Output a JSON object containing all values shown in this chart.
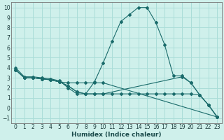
{
  "xlabel": "Humidex (Indice chaleur)",
  "bg_color": "#cff0eb",
  "grid_color": "#aaddd8",
  "line_color": "#1a6b6b",
  "xlim": [
    -0.5,
    23.5
  ],
  "ylim": [
    -1.5,
    10.5
  ],
  "xticks": [
    0,
    1,
    2,
    3,
    4,
    5,
    6,
    7,
    8,
    9,
    10,
    11,
    12,
    13,
    14,
    15,
    16,
    17,
    18,
    19,
    20,
    21,
    22,
    23
  ],
  "yticks": [
    -1,
    0,
    1,
    2,
    3,
    4,
    5,
    6,
    7,
    8,
    9,
    10
  ],
  "series": [
    {
      "x": [
        0,
        1,
        2,
        3,
        4,
        5,
        6,
        7,
        8,
        9,
        10,
        11,
        12,
        13,
        14,
        15,
        16,
        17,
        18,
        19,
        20,
        21,
        22,
        23
      ],
      "y": [
        4.0,
        3.1,
        3.1,
        3.0,
        2.9,
        2.7,
        2.0,
        1.4,
        1.4,
        2.6,
        4.5,
        6.6,
        8.6,
        9.3,
        10.0,
        10.0,
        8.5,
        6.3,
        3.2,
        3.2,
        2.5,
        1.3,
        0.3,
        -0.9
      ]
    },
    {
      "x": [
        0,
        1,
        2,
        3,
        4,
        5,
        6,
        7,
        8,
        9,
        10,
        23
      ],
      "y": [
        3.8,
        3.0,
        3.0,
        2.9,
        2.8,
        2.6,
        2.5,
        2.5,
        2.5,
        2.5,
        2.5,
        -0.9
      ]
    },
    {
      "x": [
        0,
        1,
        2,
        3,
        4,
        5,
        6,
        7,
        8,
        9,
        10,
        19,
        20,
        21,
        22,
        23
      ],
      "y": [
        3.8,
        3.0,
        3.0,
        2.9,
        2.8,
        2.6,
        2.2,
        1.6,
        1.4,
        1.4,
        1.4,
        3.1,
        2.5,
        1.3,
        0.3,
        -0.9
      ]
    },
    {
      "x": [
        0,
        1,
        2,
        3,
        4,
        5,
        6,
        7,
        8,
        9,
        10,
        11,
        12,
        13,
        14,
        15,
        16,
        17,
        18,
        19,
        20,
        21,
        22,
        23
      ],
      "y": [
        3.8,
        3.0,
        3.0,
        2.9,
        2.8,
        2.6,
        2.2,
        1.6,
        1.4,
        1.4,
        1.4,
        1.4,
        1.4,
        1.4,
        1.4,
        1.4,
        1.4,
        1.4,
        1.4,
        1.4,
        1.4,
        1.3,
        0.3,
        -0.9
      ]
    }
  ]
}
